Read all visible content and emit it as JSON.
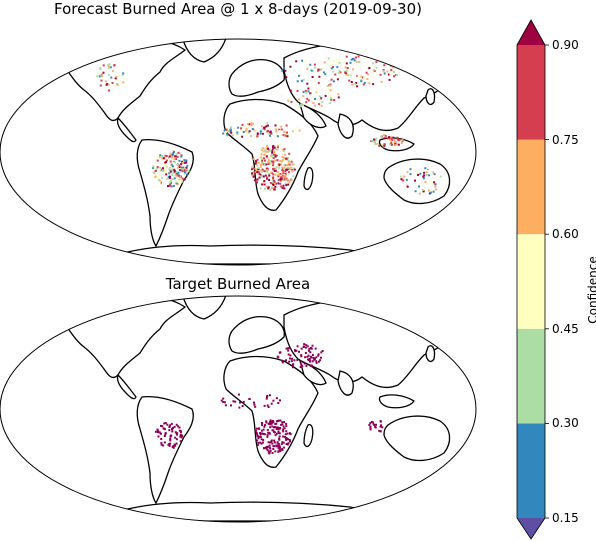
{
  "map1": {
    "title": "Forecast Burned Area @ 1 x 8-days (2019-09-30)"
  },
  "map2": {
    "title": "Target Burned Area"
  },
  "colorbar": {
    "label": "Confidence",
    "ticks": [
      "0.15",
      "0.30",
      "0.45",
      "0.60",
      "0.75",
      "0.90"
    ],
    "bins": [
      {
        "range": "0.15-0.30",
        "color": "#3288bd"
      },
      {
        "range": "0.30-0.45",
        "color": "#abdda4"
      },
      {
        "range": "0.45-0.60",
        "color": "#ffffbf"
      },
      {
        "range": "0.60-0.75",
        "color": "#fdae61"
      },
      {
        "range": "0.75-0.90",
        "color": "#d53e4f"
      }
    ],
    "over_color": "#9e0142",
    "under_color": "#5e4fa2",
    "extend": "both"
  },
  "target_color": "#8b0057",
  "projection": "Robinson"
}
